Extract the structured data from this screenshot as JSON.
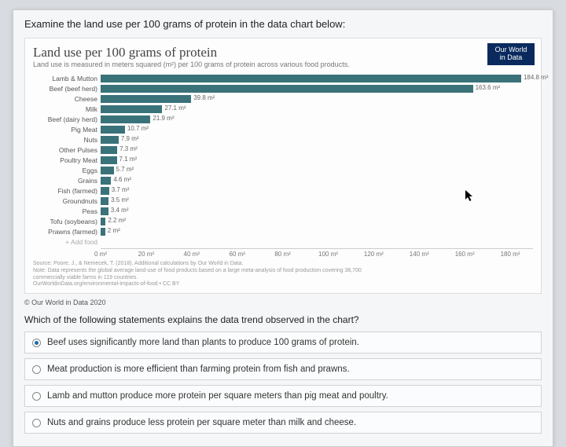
{
  "prompt": "Examine the land use per 100 grams of protein in the data chart below:",
  "chart": {
    "type": "bar",
    "title": "Land use per 100 grams of protein",
    "subtitle": "Land use is measured in meters squared (m²) per 100 grams of protein across various food products.",
    "badge_line1": "Our World",
    "badge_line2": "in Data",
    "bar_color": "#3a727a",
    "value_color": "#666666",
    "label_color": "#555555",
    "background_color": "#fdfdfd",
    "grid_color": "#cccccc",
    "label_fontsize": 8.5,
    "value_fontsize": 8,
    "xmax": 190,
    "unit": "m²",
    "rows": [
      {
        "label": "Lamb & Mutton",
        "value": 184.8
      },
      {
        "label": "Beef (beef herd)",
        "value": 163.6
      },
      {
        "label": "Cheese",
        "value": 39.8
      },
      {
        "label": "Milk",
        "value": 27.1
      },
      {
        "label": "Beef (dairy herd)",
        "value": 21.9
      },
      {
        "label": "Pig Meat",
        "value": 10.7
      },
      {
        "label": "Nuts",
        "value": 7.9
      },
      {
        "label": "Other Pulses",
        "value": 7.3
      },
      {
        "label": "Poultry Meat",
        "value": 7.1
      },
      {
        "label": "Eggs",
        "value": 5.7
      },
      {
        "label": "Grains",
        "value": 4.6
      },
      {
        "label": "Fish (farmed)",
        "value": 3.7
      },
      {
        "label": "Groundnuts",
        "value": 3.5
      },
      {
        "label": "Peas",
        "value": 3.4
      },
      {
        "label": "Tofu (soybeans)",
        "value": 2.2
      },
      {
        "label": "Prawns (farmed)",
        "value": 2
      }
    ],
    "add_food": "+ Add food",
    "ticks": [
      0,
      20,
      40,
      60,
      80,
      100,
      120,
      140,
      160,
      180
    ],
    "source_lines": [
      "Source: Poore, J., & Nemecek, T. (2018). Additional calculations by Our World in Data.",
      "Note: Data represents the global average land-use of food products based on a large meta-analysis of food production covering 38,700",
      "commercially viable farms in 119 countries.",
      "OurWorldinData.org/environmental-impacts-of-food • CC BY"
    ],
    "copyright": "© Our World in Data 2020"
  },
  "question": "Which of the following statements explains the data trend observed in the chart?",
  "options": [
    {
      "text": "Beef uses significantly more land than plants to produce 100 grams of protein.",
      "selected": true
    },
    {
      "text": "Meat production is more efficient than farming protein from fish and prawns.",
      "selected": false
    },
    {
      "text": "Lamb and mutton produce more protein per square meters than pig meat and poultry.",
      "selected": false
    },
    {
      "text": "Nuts and grains produce less protein per square meter than milk and cheese.",
      "selected": false
    }
  ]
}
